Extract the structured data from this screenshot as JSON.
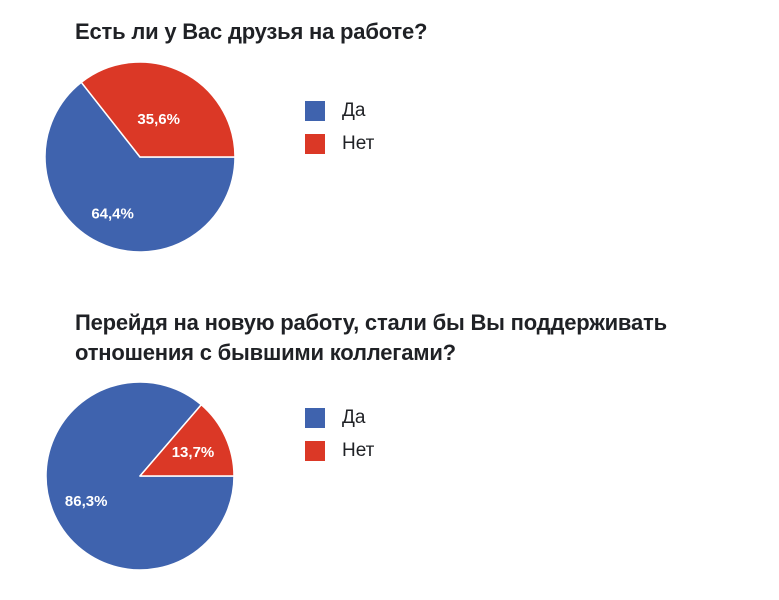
{
  "page": {
    "background_color": "#ffffff",
    "text_color": "#1f2125"
  },
  "chart_data": [
    {
      "type": "pie",
      "title": "Есть ли у Вас друзья на работе?",
      "title_lines": [
        "Есть ли у Вас друзья на работе?"
      ],
      "categories": [
        "Да",
        "Нет"
      ],
      "values": [
        64.4,
        35.6
      ],
      "value_labels": [
        "64,4%",
        "35,6%"
      ],
      "colors": [
        "#3f63ae",
        "#db3826"
      ],
      "label_color": "#ffffff",
      "label_radius_frac": [
        0.66,
        0.45
      ],
      "legend_position": "right",
      "start_angle_deg": 0,
      "direction": "clockwise"
    },
    {
      "type": "pie",
      "title": "Перейдя на новую работу, стали бы Вы поддерживать отношения с бывшими коллегами?",
      "title_lines": [
        "Перейдя на новую работу, стали бы Вы поддерживать",
        "отношения с бывшими коллегами?"
      ],
      "categories": [
        "Да",
        "Нет"
      ],
      "values": [
        86.3,
        13.7
      ],
      "value_labels": [
        "86,3%",
        "13,7%"
      ],
      "colors": [
        "#3f63ae",
        "#db3826"
      ],
      "label_color": "#ffffff",
      "label_radius_frac": [
        0.63,
        0.62
      ],
      "legend_position": "right",
      "start_angle_deg": 0,
      "direction": "clockwise"
    }
  ]
}
